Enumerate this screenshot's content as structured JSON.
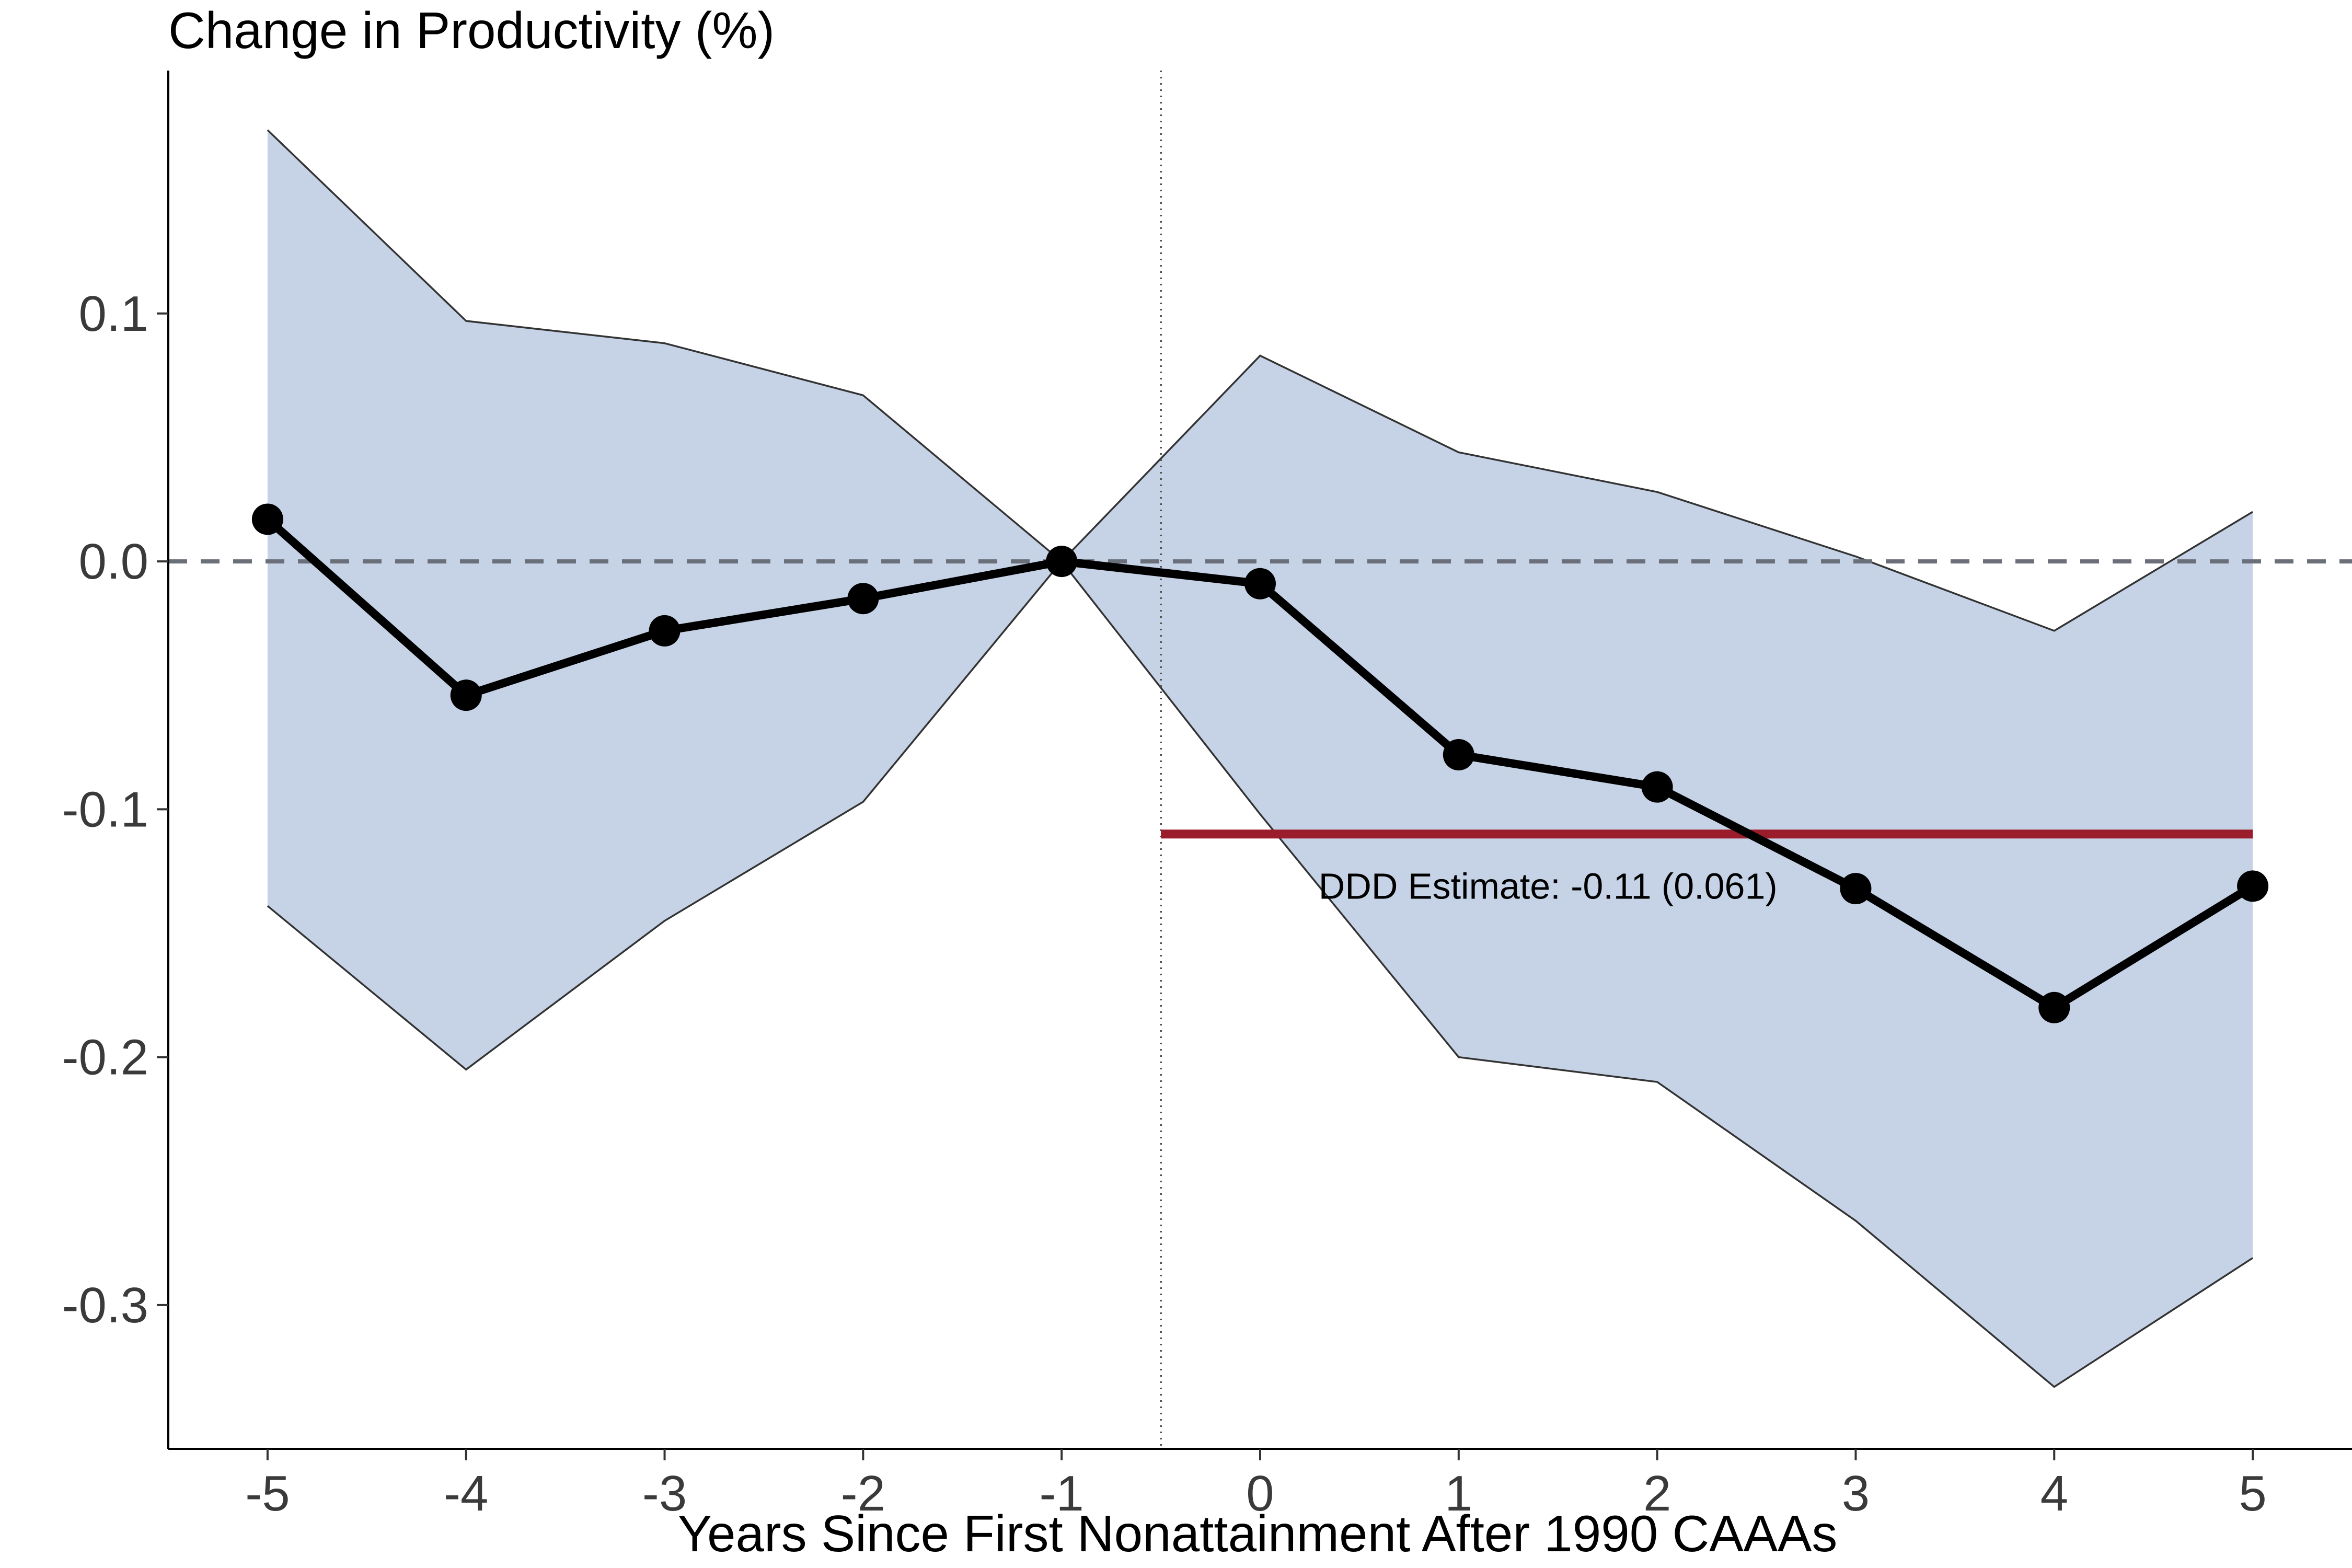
{
  "chart_data": {
    "type": "line",
    "title": "",
    "ylabel": "Change in Productivity (%)",
    "xlabel": "Years Since First Nonattainment After 1990 CAAAs",
    "x": [
      -5,
      -4,
      -3,
      -2,
      -1,
      0,
      1,
      2,
      3,
      4,
      5
    ],
    "xticks": [
      "-5",
      "-4",
      "-3",
      "-2",
      "-1",
      "0",
      "1",
      "2",
      "3",
      "4",
      "5"
    ],
    "yticks": [
      "0.1",
      "0.0",
      "-0.1",
      "-0.2",
      "-0.3"
    ],
    "ytick_values": [
      0.1,
      0.0,
      -0.1,
      -0.2,
      -0.3
    ],
    "xlim": [
      -5.5,
      5.5
    ],
    "ylim": [
      -0.358,
      0.198
    ],
    "grid": false,
    "series": [
      {
        "values": [
          0.017,
          -0.054,
          -0.028,
          -0.015,
          0.0,
          -0.009,
          -0.078,
          -0.091,
          -0.132,
          -0.18,
          -0.131
        ],
        "color": "#000000"
      }
    ],
    "confidence_band": {
      "upper": [
        0.174,
        0.097,
        0.088,
        0.067,
        0.0,
        0.083,
        0.044,
        0.028,
        0.002,
        -0.028,
        0.02
      ],
      "lower": [
        -0.139,
        -0.205,
        -0.145,
        -0.097,
        0.0,
        -0.102,
        -0.2,
        -0.21,
        -0.266,
        -0.333,
        -0.281
      ],
      "fill": "#c6d3e6",
      "stroke": "#333333"
    },
    "reference_lines": {
      "zero_line": {
        "y": 0.0,
        "style": "dashed",
        "color": "#6b6f7a"
      },
      "event_line": {
        "x": -0.5,
        "style": "dotted",
        "color": "#555555"
      },
      "estimate_line": {
        "y": -0.11,
        "x_from": -0.5,
        "x_to": 5.0,
        "color": "#9b1c2a"
      }
    },
    "annotations": [
      {
        "text": "DDD Estimate: -0.11 (0.061)",
        "x": 1.45,
        "y": -0.131
      }
    ]
  }
}
